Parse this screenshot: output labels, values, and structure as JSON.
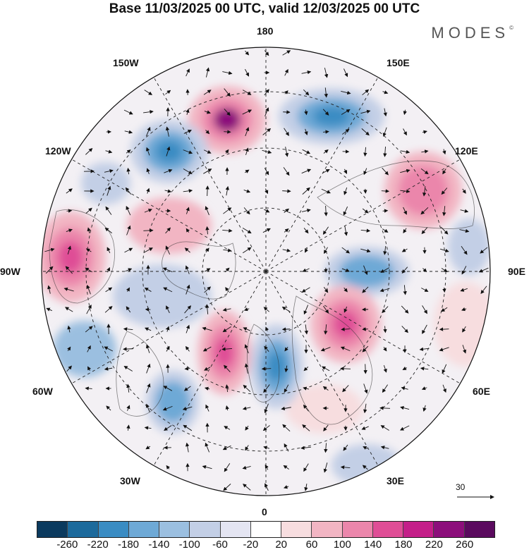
{
  "title": "Base 11/03/2025 00 UTC, valid 12/03/2025 00 UTC",
  "brand": "MODES",
  "brand_mark": "©",
  "longitude_labels": {
    "top": "180",
    "top_left": "150W",
    "top_right": "150E",
    "upper_left": "120W",
    "upper_right": "120E",
    "left": "90W",
    "right": "90E",
    "lower_left": "60W",
    "lower_right": "60E",
    "bottom_left": "30W",
    "bottom_right": "30E",
    "bottom": "0"
  },
  "wind_reference": {
    "value": "30",
    "icon": "arrow-right-icon"
  },
  "colorbar": {
    "colors": [
      "#0b3a5e",
      "#1c6a9c",
      "#3a8cc3",
      "#6ea9d6",
      "#9bbfe0",
      "#c3cfe6",
      "#e4e5f2",
      "#ffffff",
      "#f7dddf",
      "#f2b5c3",
      "#eb86ab",
      "#df4e96",
      "#c41f89",
      "#8c0f7b",
      "#5a0a5e"
    ],
    "labels": [
      "-260",
      "-220",
      "-180",
      "-140",
      "-100",
      "-60",
      "-20",
      "20",
      "60",
      "100",
      "140",
      "180",
      "220",
      "260"
    ]
  },
  "anomaly_field": {
    "units_scale": "colorbar",
    "centers": [
      {
        "lon_name": "near 180",
        "sign": "positive",
        "peak": 260,
        "color": "#8c0f7b"
      },
      {
        "lon_name": "near 150E",
        "sign": "negative",
        "peak": -180,
        "color": "#3a8cc3"
      },
      {
        "lon_name": "near 150W",
        "sign": "negative",
        "peak": -180,
        "color": "#3a8cc3"
      },
      {
        "lon_name": "near 90W",
        "sign": "positive",
        "peak": 180,
        "color": "#df4e96"
      },
      {
        "lon_name": "near 120E",
        "sign": "positive",
        "peak": 140,
        "color": "#eb86ab"
      },
      {
        "lon_name": "near 90E",
        "sign": "negative",
        "peak": -140,
        "color": "#6ea9d6"
      },
      {
        "lon_name": "near 60E",
        "sign": "positive",
        "peak": 180,
        "color": "#df4e96"
      },
      {
        "lon_name": "near 0",
        "sign": "negative",
        "peak": -180,
        "color": "#3a8cc3"
      },
      {
        "lon_name": "near 30W",
        "sign": "positive",
        "peak": 180,
        "color": "#df4e96"
      },
      {
        "lon_name": "near 60W",
        "sign": "negative",
        "peak": -140,
        "color": "#6ea9d6"
      }
    ]
  },
  "colors": {
    "coastline": "#333333",
    "graticule": "#222222",
    "wind_arrow": "#111111"
  }
}
